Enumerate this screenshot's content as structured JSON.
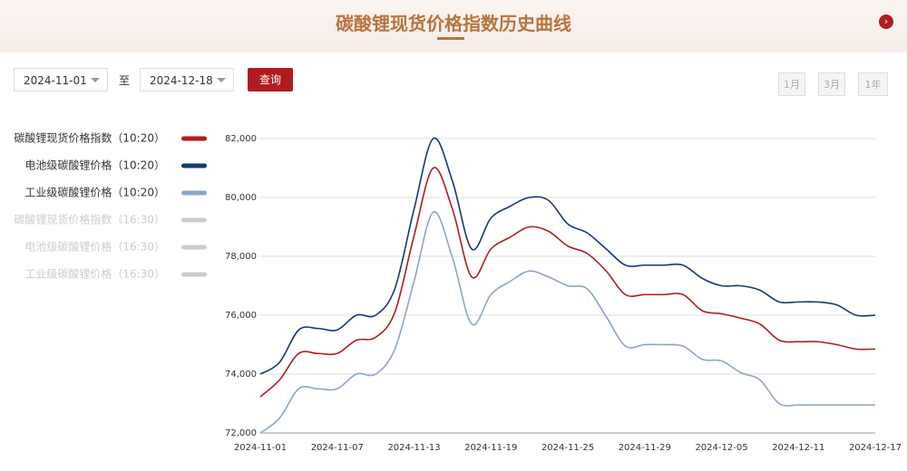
{
  "header": {
    "title": "碳酸锂现货价格指数历史曲线"
  },
  "controls": {
    "start_date": "2024-11-01",
    "separator": "至",
    "end_date": "2024-12-18",
    "query_button": "查询",
    "ranges": [
      "1月",
      "3月",
      "1年"
    ]
  },
  "chart_data": {
    "type": "line",
    "categories": [
      "2024-11-01",
      null,
      null,
      null,
      "2024-11-07",
      null,
      null,
      null,
      "2024-11-13",
      null,
      null,
      null,
      "2024-11-19",
      null,
      null,
      null,
      "2024-11-25",
      null,
      null,
      null,
      "2024-11-29",
      null,
      null,
      null,
      "2024-12-05",
      null,
      null,
      null,
      "2024-12-11",
      null,
      null,
      null,
      "2024-12-17"
    ],
    "ylim": [
      72000,
      82000
    ],
    "yticks": [
      {
        "value": 72000,
        "label": "72,000"
      },
      {
        "value": 74000,
        "label": "74,000"
      },
      {
        "value": 76000,
        "label": "76,000"
      },
      {
        "value": 78000,
        "label": "78,000"
      },
      {
        "value": 80000,
        "label": "80,000"
      },
      {
        "value": 82000,
        "label": "82,000"
      }
    ],
    "grid": true,
    "series": [
      {
        "name": "碳酸锂现货价格指数（10:20）",
        "color": "#b01c20",
        "visible": true,
        "values": [
          73230,
          73800,
          74700,
          74700,
          74700,
          75150,
          75250,
          76100,
          78700,
          81000,
          79600,
          77300,
          78250,
          78650,
          79000,
          78850,
          78350,
          78100,
          77500,
          76700,
          76700,
          76700,
          76700,
          76150,
          76050,
          75900,
          75700,
          75150,
          75100,
          75100,
          75000,
          74850,
          74850
        ]
      },
      {
        "name": "电池级碳酸锂价格（10:20）",
        "color": "#143a6e",
        "visible": true,
        "values": [
          74000,
          74400,
          75500,
          75550,
          75500,
          76000,
          76000,
          76900,
          79600,
          82000,
          80550,
          78250,
          79300,
          79700,
          80000,
          79900,
          79100,
          78800,
          78250,
          77700,
          77700,
          77700,
          77700,
          77250,
          77000,
          77000,
          76850,
          76450,
          76450,
          76450,
          76350,
          76000,
          76000
        ]
      },
      {
        "name": "工业级碳酸锂价格（10:20）",
        "color": "#8ba6c8",
        "visible": true,
        "values": [
          72000,
          72500,
          73500,
          73500,
          73500,
          74000,
          74000,
          74850,
          77150,
          79500,
          77950,
          75700,
          76700,
          77150,
          77500,
          77300,
          77000,
          76900,
          75950,
          74950,
          75000,
          75000,
          74950,
          74500,
          74450,
          74050,
          73800,
          73000,
          72950,
          72950,
          72950,
          72950,
          72950
        ]
      },
      {
        "name": "碳酸锂现货价格指数（16:30）",
        "color": "#cccccc",
        "visible": false,
        "values": [
          null,
          null,
          null,
          null,
          null,
          null,
          null,
          null,
          null,
          null,
          null,
          null,
          null,
          null,
          null,
          null,
          null,
          null,
          null,
          null,
          null,
          null,
          null,
          null,
          null,
          null,
          null,
          null,
          null,
          null,
          null,
          null,
          null
        ]
      },
      {
        "name": "电池级碳酸锂价格（16:30）",
        "color": "#cccccc",
        "visible": false,
        "values": [
          null,
          null,
          null,
          null,
          null,
          null,
          null,
          null,
          null,
          null,
          null,
          null,
          null,
          null,
          null,
          null,
          null,
          null,
          null,
          null,
          null,
          null,
          null,
          null,
          null,
          null,
          null,
          null,
          null,
          null,
          null,
          null,
          null
        ]
      },
      {
        "name": "工业级碳酸锂价格（16:30）",
        "color": "#cccccc",
        "visible": false,
        "values": [
          null,
          null,
          null,
          null,
          null,
          null,
          null,
          null,
          null,
          null,
          null,
          null,
          null,
          null,
          null,
          null,
          null,
          null,
          null,
          null,
          null,
          null,
          null,
          null,
          null,
          null,
          null,
          null,
          null,
          null,
          null,
          null,
          null
        ]
      }
    ]
  }
}
